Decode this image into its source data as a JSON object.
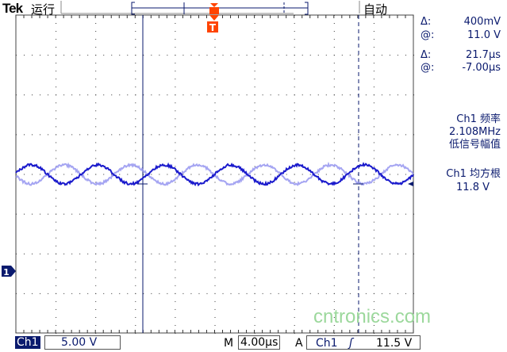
{
  "header": {
    "brand": "Tek",
    "run_state": "运行",
    "trigger_mode": "自动"
  },
  "cursor_readout": {
    "dv_label": "Δ:",
    "dv_value": "400mV",
    "v_label": "@:",
    "v_value": "11.0 V",
    "dt_label": "Δ:",
    "dt_value": "21.7µs",
    "t_label": "@:",
    "t_value": "-7.00µs"
  },
  "measure1": {
    "line1": "Ch1 频率",
    "line2": "2.108MHz",
    "line3": "低信号幅值"
  },
  "measure2": {
    "line1": "Ch1 均方根",
    "line2": "11.8 V"
  },
  "footer": {
    "channel": "Ch1",
    "volts_div": "5.00 V",
    "m_label": "M",
    "time_div": "4.00µs",
    "a_label": "A",
    "trig_source": "Ch1",
    "trig_slope": "rising-edge-icon",
    "trig_level": "11.5 V"
  },
  "markers": {
    "trigger": "T",
    "channel": "1"
  },
  "watermark": "cntronics.com",
  "colors": {
    "trace": "#1a1acc",
    "trace_ref": "#8f8fef",
    "trigger": "#ff4400",
    "text": "#0a1a6e"
  }
}
